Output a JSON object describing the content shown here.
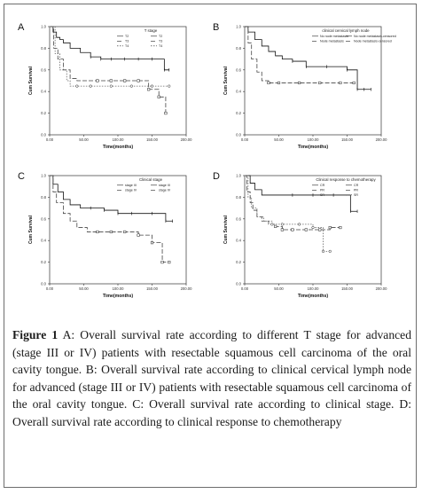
{
  "caption": {
    "label": "Figure 1",
    "text": "A: Overall survival rate according to different T stage for advanced (stage III or IV) patients with resectable squamous cell carcinoma of the oral cavity tongue. B: Overall survival rate according to clinical cervical lymph node for advanced (stage III or IV) patients with resectable squamous cell carcinoma of the oral cavity tongue. C: Overall survival rate according to clinical stage. D: Overall survival rate according to clinical response to chemotherapy"
  },
  "chart_data": [
    {
      "panel": "A",
      "type": "line",
      "title": "T stage",
      "xlabel": "Time(months)",
      "ylabel": "Cum Survival",
      "xlim": [
        0,
        200
      ],
      "ylim": [
        0,
        1.0
      ],
      "xticks": [
        "0.00",
        "50.00",
        "100.00",
        "150.00",
        "200.00"
      ],
      "yticks": [
        "0.0",
        "0.2",
        "0.4",
        "0.6",
        "0.8",
        "1.0"
      ],
      "legend": [
        "T2",
        "T3",
        "T4",
        "T2",
        "T3",
        "T4"
      ],
      "series": [
        {
          "name": "T2",
          "x": [
            0,
            5,
            10,
            15,
            20,
            30,
            45,
            60,
            75,
            90,
            110,
            130,
            150,
            168,
            175
          ],
          "y": [
            1.0,
            0.95,
            0.9,
            0.88,
            0.85,
            0.8,
            0.76,
            0.72,
            0.7,
            0.7,
            0.7,
            0.7,
            0.7,
            0.6,
            0.6
          ]
        },
        {
          "name": "T3",
          "x": [
            0,
            6,
            12,
            20,
            30,
            40,
            55,
            70,
            90,
            110,
            130,
            145,
            160,
            170
          ],
          "y": [
            1.0,
            0.8,
            0.7,
            0.6,
            0.52,
            0.5,
            0.5,
            0.5,
            0.5,
            0.5,
            0.5,
            0.42,
            0.35,
            0.2
          ]
        },
        {
          "name": "T4",
          "x": [
            0,
            8,
            15,
            25,
            30,
            40,
            60,
            90,
            120,
            150,
            175
          ],
          "y": [
            1.0,
            0.75,
            0.6,
            0.5,
            0.45,
            0.45,
            0.45,
            0.45,
            0.45,
            0.45,
            0.45
          ]
        }
      ]
    },
    {
      "panel": "B",
      "type": "line",
      "title": "clinical cervical lymph node",
      "xlabel": "Time(months)",
      "ylabel": "Cum Survival",
      "xlim": [
        0,
        200
      ],
      "ylim": [
        0,
        1.0
      ],
      "xticks": [
        "0.00",
        "50.00",
        "100.00",
        "150.00",
        "200.00"
      ],
      "yticks": [
        "0.0",
        "0.2",
        "0.4",
        "0.6",
        "0.8",
        "1.0"
      ],
      "legend": [
        "No node metastasis",
        "Node metastasis",
        "No node metastasis-censored",
        "Node metastasis-censored"
      ],
      "series": [
        {
          "name": "No node metastasis",
          "x": [
            0,
            5,
            15,
            25,
            35,
            45,
            55,
            70,
            90,
            120,
            150,
            165,
            175,
            185
          ],
          "y": [
            1.0,
            0.95,
            0.88,
            0.82,
            0.77,
            0.73,
            0.7,
            0.68,
            0.63,
            0.63,
            0.6,
            0.42,
            0.42,
            0.42
          ]
        },
        {
          "name": "Node metastasis",
          "x": [
            0,
            5,
            10,
            18,
            25,
            35,
            50,
            80,
            110,
            140,
            160
          ],
          "y": [
            1.0,
            0.85,
            0.7,
            0.58,
            0.5,
            0.48,
            0.48,
            0.48,
            0.48,
            0.48,
            0.48
          ]
        }
      ]
    },
    {
      "panel": "C",
      "type": "line",
      "title": "Clinical stage",
      "xlabel": "Time(months)",
      "ylabel": "Cum Survival",
      "xlim": [
        0,
        200
      ],
      "ylim": [
        0,
        1.0
      ],
      "xticks": [
        "0.00",
        "50.00",
        "100.00",
        "150.00",
        "200.00"
      ],
      "yticks": [
        "0.0",
        "0.2",
        "0.4",
        "0.6",
        "0.8",
        "1.0"
      ],
      "legend": [
        "stage III",
        "stage IV",
        "stage III",
        "stage IV"
      ],
      "series": [
        {
          "name": "stage III",
          "x": [
            0,
            5,
            12,
            20,
            30,
            45,
            60,
            80,
            100,
            120,
            150,
            170,
            180
          ],
          "y": [
            1.0,
            0.92,
            0.85,
            0.78,
            0.73,
            0.7,
            0.7,
            0.68,
            0.65,
            0.65,
            0.65,
            0.58,
            0.58
          ]
        },
        {
          "name": "stage IV",
          "x": [
            0,
            5,
            10,
            20,
            30,
            40,
            55,
            70,
            90,
            110,
            130,
            150,
            165,
            175
          ],
          "y": [
            1.0,
            0.85,
            0.75,
            0.65,
            0.58,
            0.52,
            0.48,
            0.48,
            0.48,
            0.48,
            0.45,
            0.38,
            0.2,
            0.2
          ]
        }
      ]
    },
    {
      "panel": "D",
      "type": "line",
      "title": "Clinical response to chemotherapy",
      "xlabel": "Time(months)",
      "ylabel": "Cum Survival",
      "xlim": [
        0,
        200
      ],
      "ylim": [
        0,
        1.0
      ],
      "xticks": [
        "0.00",
        "50.00",
        "100.00",
        "150.00",
        "200.00"
      ],
      "yticks": [
        "0.0",
        "0.2",
        "0.4",
        "0.6",
        "0.8",
        "1.0"
      ],
      "legend": [
        "CR",
        "PR",
        "SR",
        "CR",
        "PR",
        "SR"
      ],
      "series": [
        {
          "name": "CR",
          "x": [
            0,
            8,
            15,
            25,
            45,
            70,
            100,
            130,
            155,
            165
          ],
          "y": [
            1.0,
            0.93,
            0.87,
            0.82,
            0.82,
            0.82,
            0.82,
            0.82,
            0.67,
            0.67
          ]
        },
        {
          "name": "PR",
          "x": [
            0,
            3,
            8,
            12,
            18,
            25,
            35,
            45,
            55,
            70,
            90,
            110,
            125,
            140
          ],
          "y": [
            1.0,
            0.85,
            0.75,
            0.68,
            0.62,
            0.58,
            0.55,
            0.53,
            0.5,
            0.5,
            0.5,
            0.5,
            0.52,
            0.52
          ]
        },
        {
          "name": "SR",
          "x": [
            0,
            5,
            10,
            18,
            28,
            40,
            55,
            80,
            100,
            115,
            125
          ],
          "y": [
            1.0,
            0.8,
            0.7,
            0.62,
            0.58,
            0.55,
            0.55,
            0.55,
            0.52,
            0.3,
            0.3
          ]
        }
      ]
    }
  ]
}
